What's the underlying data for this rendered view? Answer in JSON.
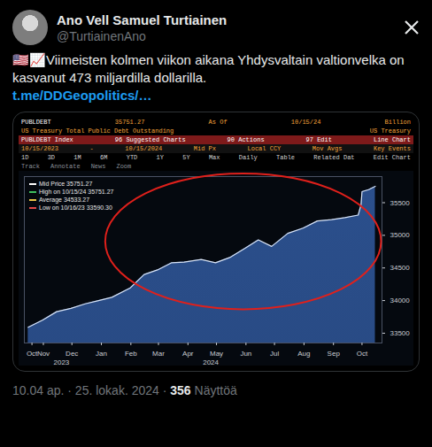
{
  "tweet": {
    "name": "Ano Vell Samuel Turtiainen",
    "handle": "@TurtiainenAno",
    "text": "🇺🇸📈Viimeisten kolmen viikon aikana Yhdysvaltain valtionvelka on kasvanut 473 miljardilla dollarilla.",
    "link": "t.me/DDGeopolitics/…",
    "time": "10.04 ap.",
    "separator": "·",
    "date": "25. lokak. 2024",
    "views": "356",
    "views_label": "Näyttöä"
  },
  "terminal": {
    "rows": [
      [
        "PUBLDEBT",
        "35751.27",
        "As Of",
        "10/15/24",
        "Billion"
      ],
      [
        "US Treasury Total Public Debt Outstanding",
        "US Treasury"
      ],
      [
        "PUBLDEBT Index",
        "96 Suggested Charts",
        "90 Actions",
        "97 Edit",
        "Line Chart"
      ],
      [
        "10/15/2023",
        "-",
        "10/15/2024",
        "Mid Px",
        "Local CCY",
        "Mov Avgs",
        "Key Events"
      ],
      [
        "1D",
        "3D",
        "1M",
        "6M",
        "YTD",
        "1Y",
        "5Y",
        "Max",
        "Daily",
        "Table",
        "Related Dat",
        "Edit Chart"
      ],
      [
        "Track",
        "Annotate",
        "News",
        "Zoom"
      ]
    ]
  },
  "chart_data": {
    "type": "area",
    "color": "#2b4f8c",
    "x": [
      "2023-10-16",
      "2023-10-31",
      "2023-11-15",
      "2023-11-30",
      "2023-12-15",
      "2023-12-29",
      "2024-01-12",
      "2024-01-31",
      "2024-02-15",
      "2024-02-29",
      "2024-03-15",
      "2024-03-28",
      "2024-04-15",
      "2024-04-30",
      "2024-05-15",
      "2024-05-31",
      "2024-06-14",
      "2024-06-28",
      "2024-07-15",
      "2024-07-31",
      "2024-08-15",
      "2024-08-30",
      "2024-09-13",
      "2024-09-27",
      "2024-09-30",
      "2024-10-01",
      "2024-10-08",
      "2024-10-15"
    ],
    "values": [
      33590.3,
      33700,
      33830,
      33880,
      33950,
      34000,
      34050,
      34190,
      34400,
      34470,
      34580,
      34590,
      34630,
      34580,
      34660,
      34800,
      34930,
      34830,
      35030,
      35110,
      35220,
      35240,
      35270,
      35310,
      35470,
      35670,
      35700,
      35751.27
    ],
    "xlim": [
      "2023-10-12",
      "2024-10-22"
    ],
    "xticks": [
      {
        "value": "2023-10-20",
        "label": "Oct"
      },
      {
        "value": "2023-11-01",
        "label": "Nov"
      },
      {
        "value": "2023-12-01",
        "label": "Dec"
      },
      {
        "value": "2024-01-01",
        "label": "Jan"
      },
      {
        "value": "2024-02-01",
        "label": "Feb"
      },
      {
        "value": "2024-03-01",
        "label": "Mar"
      },
      {
        "value": "2024-04-01",
        "label": "Apr"
      },
      {
        "value": "2024-05-01",
        "label": "May"
      },
      {
        "value": "2024-06-01",
        "label": "Jun"
      },
      {
        "value": "2024-07-01",
        "label": "Jul"
      },
      {
        "value": "2024-08-01",
        "label": "Aug"
      },
      {
        "value": "2024-09-01",
        "label": "Sep"
      },
      {
        "value": "2024-10-01",
        "label": "Oct"
      }
    ],
    "annotations": [
      {
        "x": "2023-11-20",
        "text": "2023"
      },
      {
        "x": "2024-04-25",
        "text": "2024"
      }
    ],
    "ylim": [
      33350,
      35900
    ],
    "yticks": [
      33500,
      34000,
      34500,
      35000,
      35500
    ],
    "grid": false,
    "legend": "top-left",
    "stats": [
      {
        "label": "Mid Price",
        "value": "35751.27"
      },
      {
        "label": "High on 10/15/24",
        "value": "35751.27"
      },
      {
        "label": "Average",
        "value": "34533.27"
      },
      {
        "label": "Low on 10/16/23",
        "value": "33590.30"
      }
    ]
  }
}
